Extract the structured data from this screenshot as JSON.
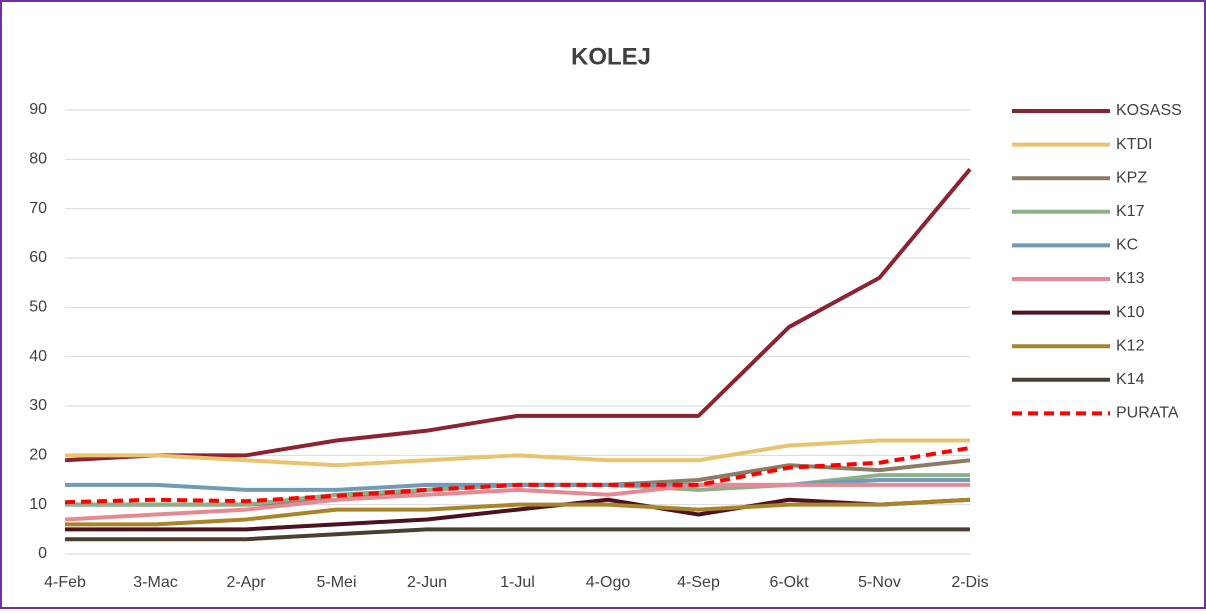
{
  "chart_data": {
    "type": "line",
    "title": "KOLEJ",
    "categories": [
      "4-Feb",
      "3-Mac",
      "2-Apr",
      "5-Mei",
      "2-Jun",
      "1-Jul",
      "4-Ogo",
      "4-Sep",
      "6-Okt",
      "5-Nov",
      "2-Dis"
    ],
    "series": [
      {
        "name": "KOSASS",
        "color": "#8b2331",
        "values": [
          19,
          20,
          20,
          23,
          25,
          28,
          28,
          28,
          46,
          56,
          78
        ]
      },
      {
        "name": "KTDI",
        "color": "#e8c46f",
        "values": [
          20,
          20,
          19,
          18,
          19,
          20,
          19,
          19,
          22,
          23,
          23
        ]
      },
      {
        "name": "KPZ",
        "color": "#8c7b65",
        "values": [
          10,
          10,
          10,
          11,
          13,
          14,
          14,
          15,
          18,
          17,
          19
        ]
      },
      {
        "name": "K17",
        "color": "#8fae8a",
        "values": [
          10,
          10,
          10,
          12,
          13,
          14,
          14,
          13,
          14,
          16,
          16
        ]
      },
      {
        "name": "KC",
        "color": "#6f9bb6",
        "values": [
          14,
          14,
          13,
          13,
          14,
          14,
          14,
          14,
          14,
          15,
          15
        ]
      },
      {
        "name": "K13",
        "color": "#e58a94",
        "values": [
          7,
          8,
          9,
          11,
          12,
          13,
          12,
          14,
          14,
          14,
          14
        ]
      },
      {
        "name": "K10",
        "color": "#4d1220",
        "values": [
          5,
          5,
          5,
          6,
          7,
          9,
          11,
          8,
          11,
          10,
          11
        ]
      },
      {
        "name": "K12",
        "color": "#a88528",
        "values": [
          6,
          6,
          7,
          9,
          9,
          10,
          10,
          9,
          10,
          10,
          11
        ]
      },
      {
        "name": "K14",
        "color": "#4a4032",
        "values": [
          3,
          3,
          3,
          4,
          5,
          5,
          5,
          5,
          5,
          5,
          5
        ]
      },
      {
        "name": "PURATA",
        "color": "#ff0000",
        "dashed": true,
        "values": [
          10.5,
          11,
          10.7,
          11.8,
          13,
          14,
          14,
          14,
          17.5,
          18.5,
          21.5
        ]
      }
    ],
    "ylim": [
      0,
      90
    ],
    "yticks": [
      0,
      10,
      20,
      30,
      40,
      50,
      60,
      70,
      80,
      90
    ],
    "grid": true,
    "legend": "right"
  }
}
